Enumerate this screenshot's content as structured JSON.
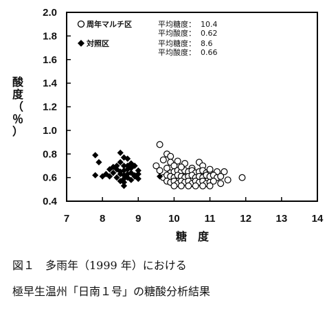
{
  "chart_data": {
    "type": "scatter",
    "xlabel": "糖　度",
    "ylabel": [
      "酸",
      "度",
      "（",
      "％",
      "）"
    ],
    "xlim": [
      7,
      14
    ],
    "ylim": [
      0.4,
      2.0
    ],
    "xticks": [
      "7",
      "8",
      "9",
      "10",
      "11",
      "12",
      "13",
      "14"
    ],
    "yticks": [
      "0.4",
      "0.6",
      "0.8",
      "1.0",
      "1.2",
      "1.4",
      "1.6",
      "1.8",
      "2.0"
    ],
    "grid": false,
    "legend_position": "top-left",
    "series": [
      {
        "name": "周年マルチ区",
        "marker": "open-circle",
        "color": "#000000",
        "stats": [
          {
            "label": "平均糖度：",
            "value": "10.4"
          },
          {
            "label": "平均酸度：",
            "value": "0.62"
          }
        ],
        "points": [
          [
            9.6,
            0.88
          ],
          [
            9.8,
            0.8
          ],
          [
            9.9,
            0.78
          ],
          [
            9.7,
            0.75
          ],
          [
            9.9,
            0.73
          ],
          [
            10.1,
            0.74
          ],
          [
            10.0,
            0.7
          ],
          [
            9.8,
            0.68
          ],
          [
            10.3,
            0.72
          ],
          [
            10.7,
            0.73
          ],
          [
            10.8,
            0.7
          ],
          [
            10.5,
            0.68
          ],
          [
            11.2,
            0.65
          ],
          [
            11.4,
            0.65
          ],
          [
            9.5,
            0.7
          ],
          [
            9.6,
            0.66
          ],
          [
            9.9,
            0.64
          ],
          [
            10.0,
            0.65
          ],
          [
            10.1,
            0.66
          ],
          [
            10.2,
            0.65
          ],
          [
            10.3,
            0.66
          ],
          [
            10.4,
            0.65
          ],
          [
            10.5,
            0.66
          ],
          [
            10.6,
            0.64
          ],
          [
            10.7,
            0.65
          ],
          [
            10.8,
            0.66
          ],
          [
            10.9,
            0.64
          ],
          [
            11.0,
            0.65
          ],
          [
            11.0,
            0.67
          ],
          [
            10.2,
            0.69
          ],
          [
            9.7,
            0.6
          ],
          [
            9.8,
            0.62
          ],
          [
            9.9,
            0.61
          ],
          [
            10.0,
            0.6
          ],
          [
            10.1,
            0.62
          ],
          [
            10.2,
            0.61
          ],
          [
            10.3,
            0.6
          ],
          [
            10.4,
            0.61
          ],
          [
            10.5,
            0.62
          ],
          [
            10.6,
            0.6
          ],
          [
            10.7,
            0.61
          ],
          [
            10.8,
            0.6
          ],
          [
            10.9,
            0.62
          ],
          [
            11.0,
            0.61
          ],
          [
            11.1,
            0.62
          ],
          [
            11.2,
            0.6
          ],
          [
            11.3,
            0.61
          ],
          [
            11.5,
            0.58
          ],
          [
            11.9,
            0.6
          ],
          [
            9.8,
            0.57
          ],
          [
            9.9,
            0.56
          ],
          [
            10.0,
            0.57
          ],
          [
            10.1,
            0.55
          ],
          [
            10.2,
            0.57
          ],
          [
            10.3,
            0.56
          ],
          [
            10.4,
            0.57
          ],
          [
            10.5,
            0.55
          ],
          [
            10.6,
            0.57
          ],
          [
            10.7,
            0.56
          ],
          [
            10.8,
            0.57
          ],
          [
            10.9,
            0.55
          ],
          [
            11.0,
            0.56
          ],
          [
            11.1,
            0.57
          ],
          [
            11.3,
            0.55
          ],
          [
            10.0,
            0.53
          ],
          [
            10.2,
            0.53
          ],
          [
            10.4,
            0.53
          ],
          [
            10.6,
            0.53
          ],
          [
            10.8,
            0.53
          ],
          [
            11.0,
            0.53
          ]
        ]
      },
      {
        "name": "対照区",
        "marker": "filled-diamond",
        "color": "#000000",
        "stats": [
          {
            "label": "平均糖度：",
            "value": "8.6"
          },
          {
            "label": "平均酸度：",
            "value": "0.66"
          }
        ],
        "points": [
          [
            7.8,
            0.79
          ],
          [
            7.8,
            0.62
          ],
          [
            7.9,
            0.73
          ],
          [
            8.5,
            0.81
          ],
          [
            8.6,
            0.77
          ],
          [
            8.7,
            0.76
          ],
          [
            8.5,
            0.73
          ],
          [
            8.8,
            0.72
          ],
          [
            8.4,
            0.7
          ],
          [
            8.6,
            0.7
          ],
          [
            8.9,
            0.7
          ],
          [
            8.2,
            0.67
          ],
          [
            8.4,
            0.67
          ],
          [
            8.6,
            0.66
          ],
          [
            8.7,
            0.67
          ],
          [
            8.8,
            0.68
          ],
          [
            9.0,
            0.66
          ],
          [
            8.1,
            0.63
          ],
          [
            8.3,
            0.64
          ],
          [
            8.5,
            0.63
          ],
          [
            8.6,
            0.62
          ],
          [
            8.7,
            0.63
          ],
          [
            8.8,
            0.64
          ],
          [
            8.9,
            0.62
          ],
          [
            9.0,
            0.63
          ],
          [
            8.0,
            0.61
          ],
          [
            8.2,
            0.61
          ],
          [
            8.4,
            0.6
          ],
          [
            8.6,
            0.59
          ],
          [
            8.7,
            0.6
          ],
          [
            8.9,
            0.61
          ],
          [
            9.0,
            0.59
          ],
          [
            9.6,
            0.61
          ],
          [
            8.5,
            0.57
          ],
          [
            8.6,
            0.56
          ],
          [
            8.8,
            0.58
          ],
          [
            8.6,
            0.53
          ],
          [
            8.5,
            0.65
          ],
          [
            8.7,
            0.7
          ],
          [
            8.3,
            0.69
          ]
        ]
      }
    ]
  },
  "caption": {
    "line1": "図１　多雨年（1999 年）における",
    "line2": "極早生温州「日南１号」の糖酸分析結果"
  }
}
